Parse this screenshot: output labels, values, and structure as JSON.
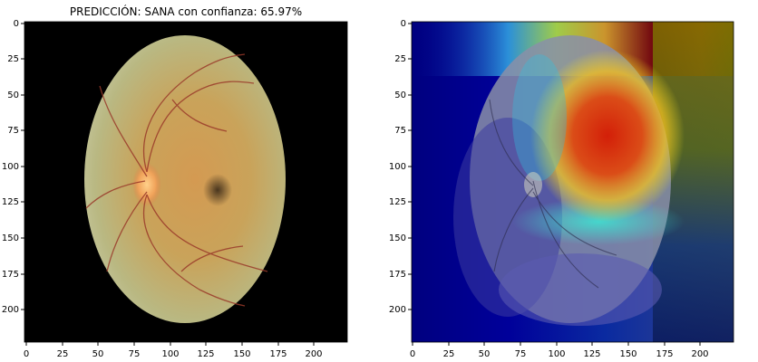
{
  "figure": {
    "title": "PREDICCIÓN: SANA  con confianza: 65.97%",
    "prediction": "SANA",
    "confidence_percent": 65.97
  },
  "left_panel": {
    "content": "fundus photograph",
    "x_ticks": [
      "0",
      "25",
      "50",
      "75",
      "100",
      "125",
      "150",
      "175",
      "200"
    ],
    "y_ticks": [
      "0",
      "25",
      "50",
      "75",
      "100",
      "125",
      "150",
      "175",
      "200"
    ]
  },
  "right_panel": {
    "content": "Grad-CAM heatmap overlay on fundus photograph",
    "x_ticks": [
      "0",
      "25",
      "50",
      "75",
      "100",
      "125",
      "150",
      "175",
      "200"
    ],
    "y_ticks": [
      "0",
      "25",
      "50",
      "75",
      "100",
      "125",
      "150",
      "175",
      "200"
    ]
  },
  "colors": {
    "background": "#000000",
    "fundus_base": "#c9a35a",
    "optic_disc": "#f0a35a",
    "vessels": "#9a3a2a",
    "heat_low": "#00007f",
    "heat_high": "#cc1a00"
  }
}
